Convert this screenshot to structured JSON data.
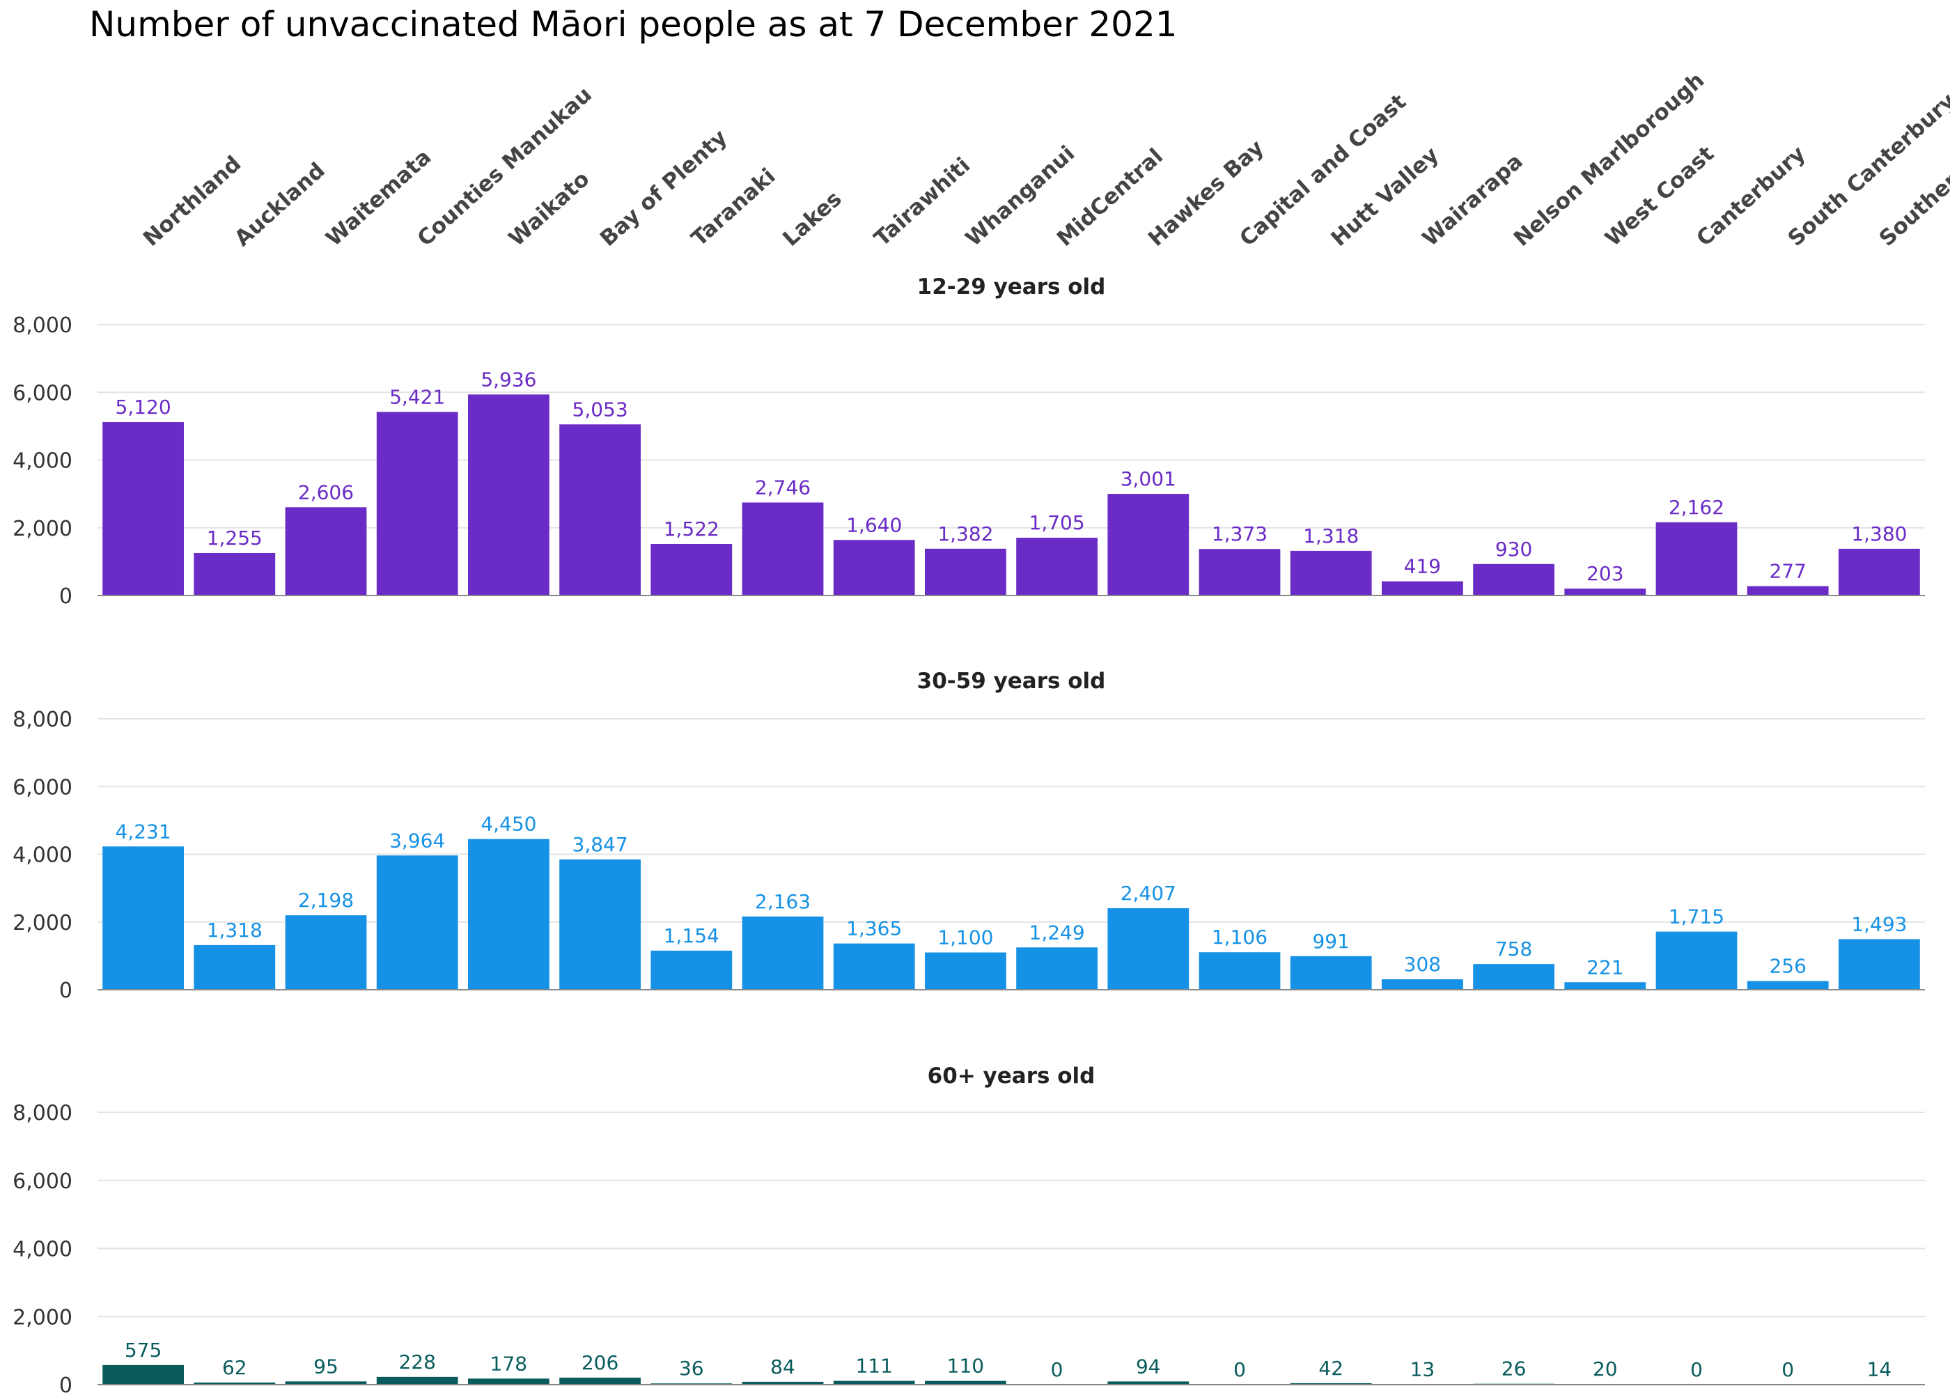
{
  "title": "Number of unvaccinated Māori people as at 7 December 2021",
  "chart_data": {
    "type": "bar",
    "title": "Number of unvaccinated Māori people as at 7 December 2021",
    "categories": [
      "Northland",
      "Auckland",
      "Waitemata",
      "Counties Manukau",
      "Waikato",
      "Bay of Plenty",
      "Taranaki",
      "Lakes",
      "Tairawhiti",
      "Whanganui",
      "MidCentral",
      "Hawkes Bay",
      "Capital and Coast",
      "Hutt Valley",
      "Wairarapa",
      "Nelson Marlborough",
      "West Coast",
      "Canterbury",
      "South Canterbury",
      "Southern"
    ],
    "ylim": [
      0,
      8000
    ],
    "yticks": [
      "0",
      "2,000",
      "4,000",
      "6,000",
      "8,000"
    ],
    "grid": true,
    "panels": [
      {
        "name": "12-29 years old",
        "color": "#6a2bc6",
        "values": [
          5120,
          1255,
          2606,
          5421,
          5936,
          5053,
          1522,
          2746,
          1640,
          1382,
          1705,
          3001,
          1373,
          1318,
          419,
          930,
          203,
          2162,
          277,
          1380
        ],
        "labels": [
          "5,120",
          "1,255",
          "2,606",
          "5,421",
          "5,936",
          "5,053",
          "1,522",
          "2,746",
          "1,640",
          "1,382",
          "1,705",
          "3,001",
          "1,373",
          "1,318",
          "419",
          "930",
          "203",
          "2,162",
          "277",
          "1,380"
        ]
      },
      {
        "name": "30-59 years old",
        "color": "#1591e6",
        "values": [
          4231,
          1318,
          2198,
          3964,
          4450,
          3847,
          1154,
          2163,
          1365,
          1100,
          1249,
          2407,
          1106,
          991,
          308,
          758,
          221,
          1715,
          256,
          1493
        ],
        "labels": [
          "4,231",
          "1,318",
          "2,198",
          "3,964",
          "4,450",
          "3,847",
          "1,154",
          "2,163",
          "1,365",
          "1,100",
          "1,249",
          "2,407",
          "1,106",
          "991",
          "308",
          "758",
          "221",
          "1,715",
          "256",
          "1,493"
        ]
      },
      {
        "name": "60+ years old",
        "color": "#0a5c5c",
        "values": [
          575,
          62,
          95,
          228,
          178,
          206,
          36,
          84,
          111,
          110,
          0,
          94,
          0,
          42,
          13,
          26,
          20,
          0,
          0,
          14
        ],
        "labels": [
          "575",
          "62",
          "95",
          "228",
          "178",
          "206",
          "36",
          "84",
          "111",
          "110",
          "0",
          "94",
          "0",
          "42",
          "13",
          "26",
          "20",
          "0",
          "0",
          "14"
        ]
      }
    ]
  }
}
